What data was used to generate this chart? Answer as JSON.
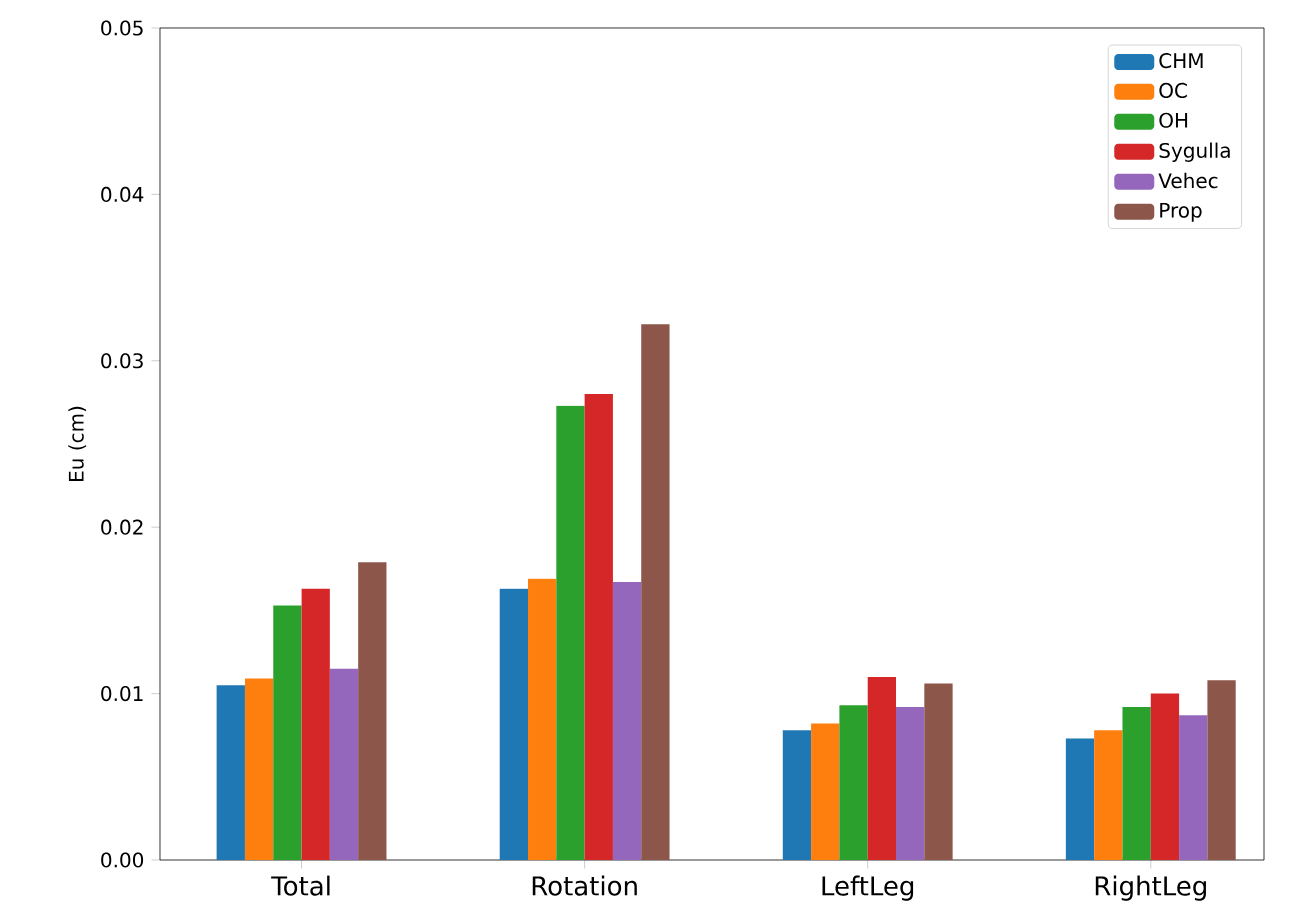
{
  "chart_data": {
    "type": "bar",
    "ylabel": "Eu (cm)",
    "categories": [
      "Total",
      "Rotation",
      "LeftLeg",
      "RightLeg"
    ],
    "series": [
      {
        "name": "CHM",
        "color": "#1f77b4",
        "values": [
          0.0105,
          0.0163,
          0.0078,
          0.0073
        ]
      },
      {
        "name": "OC",
        "color": "#ff7f0e",
        "values": [
          0.0109,
          0.0169,
          0.0082,
          0.0078
        ]
      },
      {
        "name": "OH",
        "color": "#2ca02c",
        "values": [
          0.0153,
          0.0273,
          0.0093,
          0.0092
        ]
      },
      {
        "name": "Sygulla",
        "color": "#d62728",
        "values": [
          0.0163,
          0.028,
          0.011,
          0.01
        ]
      },
      {
        "name": "Vehec",
        "color": "#9467bd",
        "values": [
          0.0115,
          0.0167,
          0.0092,
          0.0087
        ]
      },
      {
        "name": "Prop",
        "color": "#8c564b",
        "values": [
          0.0179,
          0.0322,
          0.0106,
          0.0108
        ]
      }
    ],
    "ylim": [
      0,
      0.05
    ],
    "yticks": [
      {
        "value": 0,
        "label": "0.00"
      },
      {
        "value": 0.01,
        "label": "0.01"
      },
      {
        "value": 0.02,
        "label": "0.02"
      },
      {
        "value": 0.03,
        "label": "0.03"
      },
      {
        "value": 0.04,
        "label": "0.04"
      },
      {
        "value": 0.05,
        "label": "0.05"
      }
    ],
    "legend": "top right",
    "grid": false
  }
}
